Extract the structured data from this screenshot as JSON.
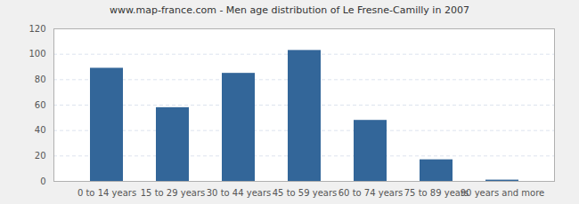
{
  "chart_data": {
    "type": "bar",
    "title": "www.map-france.com - Men age distribution of Le Fresne-Camilly in 2007",
    "categories": [
      "0 to 14 years",
      "15 to 29 years",
      "30 to 44 years",
      "45 to 59 years",
      "60 to 74 years",
      "75 to 89 years",
      "90 years and more"
    ],
    "values": [
      89,
      58,
      85,
      103,
      48,
      17,
      1
    ],
    "color": "#336699",
    "ylim": [
      0,
      120
    ],
    "yticks": [
      0,
      20,
      40,
      60,
      80,
      100,
      120
    ],
    "grid": true
  }
}
